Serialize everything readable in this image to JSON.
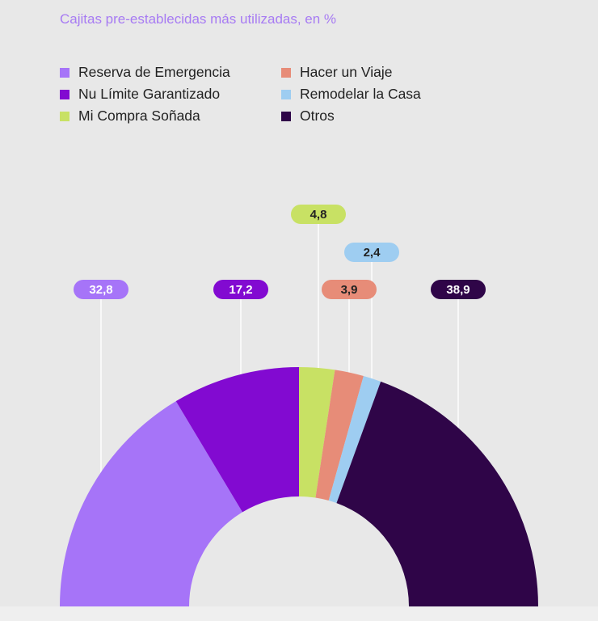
{
  "chart_data": {
    "type": "pie",
    "variant": "semicircle-donut",
    "title": "Cajitas pre-establecidas más utilizadas, en %",
    "unit": "%",
    "categories": [
      "Reserva de Emergencia",
      "Nu Límite Garantizado",
      "Mi Compra Soñada",
      "Hacer un Viaje",
      "Remodelar la Casa",
      "Otros"
    ],
    "values": [
      32.8,
      17.2,
      4.8,
      3.9,
      2.4,
      38.9
    ],
    "labels": [
      "32,8",
      "17,2",
      "4,8",
      "3,9",
      "2,4",
      "38,9"
    ],
    "colors": [
      "#a674f8",
      "#820ad1",
      "#c8e164",
      "#e78c78",
      "#9ecdf1",
      "#2f0548"
    ],
    "label_text_colors": [
      "#ffffff",
      "#ffffff",
      "#222222",
      "#222222",
      "#222222",
      "#ffffff"
    ],
    "legend": [
      {
        "label": "Reserva de Emergencia",
        "color": "#a674f8"
      },
      {
        "label": "Hacer un Viaje",
        "color": "#e78c78"
      },
      {
        "label": "Nu Límite Garantizado",
        "color": "#820ad1"
      },
      {
        "label": "Remodelar la Casa",
        "color": "#9ecdf1"
      },
      {
        "label": "Mi Compra Soñada",
        "color": "#c8e164"
      },
      {
        "label": "Otros",
        "color": "#2f0548"
      }
    ],
    "legend_position": "top-left"
  }
}
